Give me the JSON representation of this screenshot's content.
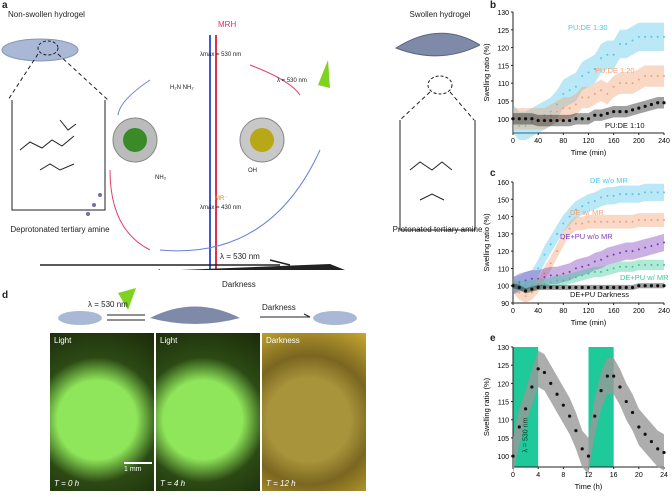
{
  "panels": {
    "a": "a",
    "b": "b",
    "c": "c",
    "d": "d",
    "e": "e"
  },
  "a": {
    "left_title": "Non-swollen hydrogel",
    "right_title": "Swollen hydrogel",
    "left_caption": "Deprotonated tertiary amine",
    "right_caption": "Protonated tertiary amine",
    "mrh": "MRH",
    "mrh_lambda": "λmax = 530 nm",
    "mr": "MR⁻",
    "mr_lambda": "λmax = 430 nm",
    "light_label": "λ = 530 nm",
    "nh3": "NH₃",
    "acid": "OH",
    "urea": "H₂N  NH₂",
    "forward": "λ = 530 nm",
    "backward": "Darkness"
  },
  "d": {
    "light_label": "λ = 530 nm",
    "darkness": "Darkness",
    "photos": [
      {
        "label": "Light",
        "time": "T = 0 h"
      },
      {
        "label": "Light",
        "time": "T = 4 h"
      },
      {
        "label": "Darkness",
        "time": "T = 12 h"
      }
    ],
    "scale_bar": "1 mm"
  },
  "colors": {
    "cyan": "#52c6e8",
    "orange": "#f0a070",
    "purple": "#7a3ab8",
    "teal": "#3cc79a",
    "black": "#111111",
    "green_band": "#1ec99a"
  },
  "chart_data": [
    {
      "id": "b",
      "type": "line",
      "xlabel": "Time (min)",
      "ylabel": "Swelling ratio (%)",
      "xlim": [
        0,
        240
      ],
      "ylim": [
        96,
        130
      ],
      "xticks": [
        0,
        40,
        80,
        120,
        160,
        200,
        240
      ],
      "yticks": [
        100,
        105,
        110,
        115,
        120,
        125,
        130
      ],
      "x": [
        0,
        10,
        20,
        30,
        40,
        50,
        60,
        70,
        80,
        90,
        100,
        110,
        120,
        130,
        140,
        150,
        160,
        170,
        180,
        190,
        200,
        210,
        220,
        230,
        240
      ],
      "series": [
        {
          "name": "PU:DE 1:30",
          "color": "#52c6e8",
          "band": 4,
          "values": [
            100,
            98,
            98,
            99,
            100,
            101,
            102,
            104,
            107,
            108,
            109,
            112,
            113,
            114,
            117,
            118,
            118,
            121,
            121,
            122,
            123,
            123,
            123,
            123,
            123
          ]
        },
        {
          "name": "PU:DE 1:20",
          "color": "#f0a070",
          "band": 3,
          "values": [
            100,
            100,
            100,
            100,
            100,
            100,
            101,
            102,
            103,
            103,
            104,
            106,
            106,
            107,
            108,
            107,
            109,
            110,
            110,
            110,
            111,
            112,
            112,
            112,
            112
          ]
        },
        {
          "name": "PU:DE 1:10",
          "color": "#111111",
          "band": 1.6,
          "values": [
            100,
            100,
            100,
            100,
            99.5,
            99.5,
            99.5,
            99.5,
            99.5,
            99.5,
            100,
            100,
            100,
            101,
            101,
            101.5,
            102,
            102,
            102,
            102.5,
            103,
            103.5,
            104,
            104.5,
            104.5
          ]
        }
      ]
    },
    {
      "id": "c",
      "type": "line",
      "xlabel": "Time (min)",
      "ylabel": "Swelling ratio (%)",
      "xlim": [
        0,
        240
      ],
      "ylim": [
        90,
        160
      ],
      "xticks": [
        0,
        40,
        80,
        120,
        160,
        200,
        240
      ],
      "yticks": [
        90,
        100,
        110,
        120,
        130,
        140,
        150,
        160
      ],
      "x": [
        0,
        10,
        20,
        30,
        40,
        50,
        60,
        70,
        80,
        90,
        100,
        110,
        120,
        130,
        140,
        150,
        160,
        170,
        180,
        190,
        200,
        210,
        220,
        230,
        240
      ],
      "series": [
        {
          "name": "DE w/o MR",
          "color": "#52c6e8",
          "band": 5,
          "values": [
            100,
            101,
            103,
            104,
            110,
            118,
            124,
            130,
            136,
            140,
            144,
            146,
            148,
            149,
            151,
            152,
            152,
            153,
            153,
            153,
            153,
            154,
            154,
            154,
            154
          ]
        },
        {
          "name": "DE w/ MR",
          "color": "#f0a070",
          "band": 4,
          "values": [
            100,
            96,
            94,
            96,
            100,
            107,
            113,
            120,
            127,
            133,
            136,
            136,
            137,
            137,
            137,
            137,
            137,
            137,
            137,
            137,
            138,
            138,
            138,
            138,
            138
          ]
        },
        {
          "name": "DE+PU w/o MR",
          "color": "#7a3ab8",
          "band": 5,
          "values": [
            100,
            102,
            103,
            104,
            104,
            105,
            106,
            106,
            107,
            108,
            110,
            111,
            112,
            114,
            115,
            117,
            118,
            119,
            120,
            120,
            121,
            122,
            123,
            124,
            125
          ]
        },
        {
          "name": "DE+PU w/ MR",
          "color": "#3cc79a",
          "band": 3,
          "values": [
            100,
            100,
            100,
            100,
            101,
            101,
            102,
            103,
            103,
            104,
            105,
            106,
            107,
            108,
            108,
            109,
            110,
            111,
            111,
            111,
            112,
            112,
            112,
            112,
            112
          ]
        },
        {
          "name": "DE+PU Darkness",
          "color": "#111111",
          "band": 1.5,
          "values": [
            100,
            99,
            97,
            98,
            99,
            99,
            99,
            99,
            99,
            99,
            99,
            99,
            99,
            99,
            99,
            99,
            99,
            99,
            99,
            99,
            100,
            100,
            100,
            100,
            100
          ]
        }
      ]
    },
    {
      "id": "e",
      "type": "line",
      "xlabel": "Time (h)",
      "ylabel": "Swelling ratio (%)",
      "xlim": [
        0,
        24
      ],
      "ylim": [
        97,
        130
      ],
      "xticks": [
        0,
        4,
        8,
        12,
        16,
        20,
        24
      ],
      "yticks": [
        100,
        105,
        110,
        115,
        120,
        125,
        130
      ],
      "light_windows": [
        [
          0,
          4
        ],
        [
          12,
          16
        ]
      ],
      "annotation": "λ = 530 nm",
      "x": [
        0,
        1,
        2,
        3,
        4,
        5,
        6,
        7,
        8,
        9,
        10,
        11,
        12,
        13,
        14,
        15,
        16,
        17,
        18,
        19,
        20,
        21,
        22,
        23,
        24
      ],
      "series": [
        {
          "name": "Swelling",
          "color": "#111111",
          "band": 5,
          "values": [
            100,
            108,
            113,
            119,
            124,
            123,
            120,
            117,
            114,
            111,
            107,
            102,
            100,
            111,
            118,
            122,
            122,
            119,
            115,
            112,
            108,
            106,
            104,
            102,
            101
          ]
        }
      ]
    }
  ]
}
